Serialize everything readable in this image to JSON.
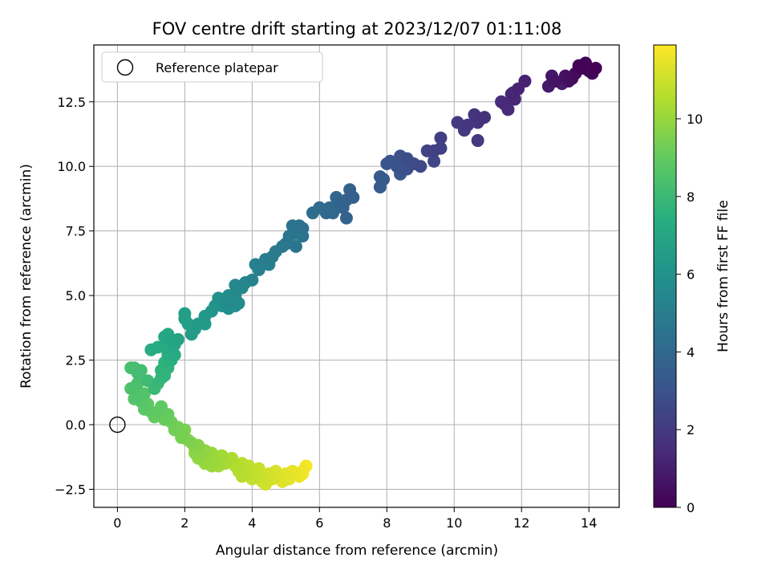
{
  "chart_data": {
    "type": "scatter",
    "title": "FOV centre drift starting at 2023/12/07 01:11:08",
    "xlabel": "Angular distance from reference (arcmin)",
    "ylabel": "Rotation from reference (arcmin)",
    "xlim": [
      -0.7,
      14.9
    ],
    "ylim": [
      -3.2,
      14.7
    ],
    "xticks": [
      0,
      2,
      4,
      6,
      8,
      10,
      12,
      14
    ],
    "yticks": [
      -2.5,
      0.0,
      2.5,
      5.0,
      7.5,
      10.0,
      12.5
    ],
    "ytick_labels": [
      "−2.5",
      "0.0",
      "2.5",
      "5.0",
      "7.5",
      "10.0",
      "12.5"
    ],
    "grid": true,
    "legend": {
      "placement": "top-left",
      "entries": [
        {
          "label": "Reference platepar",
          "marker": "open-circle",
          "x": 0,
          "y": 0
        }
      ]
    },
    "colorbar": {
      "label": "Hours from first FF file",
      "range": [
        0,
        11.9
      ],
      "ticks": [
        0,
        2,
        4,
        6,
        8,
        10
      ],
      "colormap": "viridis"
    },
    "color_value": "hours",
    "points": [
      {
        "x": 14.2,
        "y": 13.8,
        "hours": 0.05
      },
      {
        "x": 13.9,
        "y": 14.0,
        "hours": 0.1
      },
      {
        "x": 14.1,
        "y": 13.6,
        "hours": 0.15
      },
      {
        "x": 13.8,
        "y": 13.8,
        "hours": 0.2
      },
      {
        "x": 13.6,
        "y": 13.6,
        "hours": 0.3
      },
      {
        "x": 13.5,
        "y": 13.4,
        "hours": 0.4
      },
      {
        "x": 13.3,
        "y": 13.5,
        "hours": 0.5
      },
      {
        "x": 13.0,
        "y": 13.3,
        "hours": 0.6
      },
      {
        "x": 12.9,
        "y": 13.5,
        "hours": 0.7
      },
      {
        "x": 12.8,
        "y": 13.1,
        "hours": 0.8
      },
      {
        "x": 13.2,
        "y": 13.2,
        "hours": 0.9
      },
      {
        "x": 13.7,
        "y": 13.9,
        "hours": 0.05
      },
      {
        "x": 14.0,
        "y": 13.7,
        "hours": 0.12
      },
      {
        "x": 13.4,
        "y": 13.3,
        "hours": 0.55
      },
      {
        "x": 12.1,
        "y": 13.3,
        "hours": 1.1
      },
      {
        "x": 11.9,
        "y": 13.0,
        "hours": 1.2
      },
      {
        "x": 11.7,
        "y": 12.8,
        "hours": 1.3
      },
      {
        "x": 11.5,
        "y": 12.4,
        "hours": 1.4
      },
      {
        "x": 11.8,
        "y": 12.6,
        "hours": 1.35
      },
      {
        "x": 11.6,
        "y": 12.2,
        "hours": 1.45
      },
      {
        "x": 11.4,
        "y": 12.5,
        "hours": 1.5
      },
      {
        "x": 11.75,
        "y": 12.85,
        "hours": 1.25
      },
      {
        "x": 10.9,
        "y": 11.9,
        "hours": 1.7
      },
      {
        "x": 10.7,
        "y": 11.7,
        "hours": 1.8
      },
      {
        "x": 10.6,
        "y": 12.0,
        "hours": 1.75
      },
      {
        "x": 10.4,
        "y": 11.6,
        "hours": 1.9
      },
      {
        "x": 10.1,
        "y": 11.7,
        "hours": 2.0
      },
      {
        "x": 10.7,
        "y": 11.0,
        "hours": 1.95
      },
      {
        "x": 10.3,
        "y": 11.4,
        "hours": 2.05
      },
      {
        "x": 10.8,
        "y": 11.85,
        "hours": 1.72
      },
      {
        "x": 9.6,
        "y": 11.1,
        "hours": 2.2
      },
      {
        "x": 9.6,
        "y": 10.7,
        "hours": 2.3
      },
      {
        "x": 9.4,
        "y": 10.6,
        "hours": 2.35
      },
      {
        "x": 9.2,
        "y": 10.6,
        "hours": 2.4
      },
      {
        "x": 9.4,
        "y": 10.2,
        "hours": 2.45
      },
      {
        "x": 9.0,
        "y": 10.0,
        "hours": 2.6
      },
      {
        "x": 8.8,
        "y": 10.1,
        "hours": 2.7
      },
      {
        "x": 8.6,
        "y": 10.3,
        "hours": 2.8
      },
      {
        "x": 8.4,
        "y": 10.4,
        "hours": 2.9
      },
      {
        "x": 8.5,
        "y": 9.9,
        "hours": 3.0
      },
      {
        "x": 8.3,
        "y": 10.0,
        "hours": 3.05
      },
      {
        "x": 8.1,
        "y": 10.2,
        "hours": 3.1
      },
      {
        "x": 8.0,
        "y": 10.1,
        "hours": 3.15
      },
      {
        "x": 8.4,
        "y": 9.7,
        "hours": 3.2
      },
      {
        "x": 8.6,
        "y": 9.9,
        "hours": 2.9
      },
      {
        "x": 7.9,
        "y": 9.5,
        "hours": 3.3
      },
      {
        "x": 7.8,
        "y": 9.6,
        "hours": 3.35
      },
      {
        "x": 7.8,
        "y": 9.2,
        "hours": 3.4
      },
      {
        "x": 7.0,
        "y": 8.8,
        "hours": 3.6
      },
      {
        "x": 6.9,
        "y": 9.1,
        "hours": 3.65
      },
      {
        "x": 6.8,
        "y": 8.7,
        "hours": 3.7
      },
      {
        "x": 6.7,
        "y": 8.4,
        "hours": 3.8
      },
      {
        "x": 6.6,
        "y": 8.6,
        "hours": 3.85
      },
      {
        "x": 6.5,
        "y": 8.8,
        "hours": 3.9
      },
      {
        "x": 6.4,
        "y": 8.2,
        "hours": 4.0
      },
      {
        "x": 6.3,
        "y": 8.4,
        "hours": 4.05
      },
      {
        "x": 6.2,
        "y": 8.2,
        "hours": 4.1
      },
      {
        "x": 6.0,
        "y": 8.4,
        "hours": 4.2
      },
      {
        "x": 6.8,
        "y": 8.0,
        "hours": 3.75
      },
      {
        "x": 5.8,
        "y": 8.2,
        "hours": 4.25
      },
      {
        "x": 5.5,
        "y": 7.6,
        "hours": 4.4
      },
      {
        "x": 5.4,
        "y": 7.7,
        "hours": 4.45
      },
      {
        "x": 5.2,
        "y": 7.7,
        "hours": 4.5
      },
      {
        "x": 5.3,
        "y": 7.4,
        "hours": 4.55
      },
      {
        "x": 5.5,
        "y": 7.3,
        "hours": 4.5
      },
      {
        "x": 5.1,
        "y": 7.3,
        "hours": 4.6
      },
      {
        "x": 5.0,
        "y": 7.0,
        "hours": 4.7
      },
      {
        "x": 5.3,
        "y": 6.9,
        "hours": 4.65
      },
      {
        "x": 4.9,
        "y": 6.9,
        "hours": 4.8
      },
      {
        "x": 4.7,
        "y": 6.7,
        "hours": 4.9
      },
      {
        "x": 4.6,
        "y": 6.5,
        "hours": 5.0
      },
      {
        "x": 4.4,
        "y": 6.4,
        "hours": 5.05
      },
      {
        "x": 4.3,
        "y": 6.2,
        "hours": 5.1
      },
      {
        "x": 4.5,
        "y": 6.2,
        "hours": 5.1
      },
      {
        "x": 4.1,
        "y": 6.2,
        "hours": 5.15
      },
      {
        "x": 4.2,
        "y": 6.0,
        "hours": 5.2
      },
      {
        "x": 4.0,
        "y": 5.6,
        "hours": 5.3
      },
      {
        "x": 3.8,
        "y": 5.5,
        "hours": 5.4
      },
      {
        "x": 3.7,
        "y": 5.3,
        "hours": 5.5
      },
      {
        "x": 3.5,
        "y": 5.4,
        "hours": 5.5
      },
      {
        "x": 3.5,
        "y": 5.0,
        "hours": 5.6
      },
      {
        "x": 3.4,
        "y": 4.8,
        "hours": 5.65
      },
      {
        "x": 3.6,
        "y": 4.7,
        "hours": 5.7
      },
      {
        "x": 3.3,
        "y": 5.0,
        "hours": 5.75
      },
      {
        "x": 3.2,
        "y": 4.7,
        "hours": 5.8
      },
      {
        "x": 3.3,
        "y": 4.5,
        "hours": 5.85
      },
      {
        "x": 3.5,
        "y": 4.6,
        "hours": 5.9
      },
      {
        "x": 3.1,
        "y": 4.6,
        "hours": 6.0
      },
      {
        "x": 2.9,
        "y": 4.6,
        "hours": 6.1
      },
      {
        "x": 2.8,
        "y": 4.4,
        "hours": 6.2
      },
      {
        "x": 3.0,
        "y": 4.9,
        "hours": 5.95
      },
      {
        "x": 2.6,
        "y": 4.2,
        "hours": 6.3
      },
      {
        "x": 2.6,
        "y": 3.9,
        "hours": 6.35
      },
      {
        "x": 2.4,
        "y": 3.9,
        "hours": 6.4
      },
      {
        "x": 2.3,
        "y": 3.7,
        "hours": 6.45
      },
      {
        "x": 2.2,
        "y": 3.5,
        "hours": 6.5
      },
      {
        "x": 2.1,
        "y": 3.9,
        "hours": 6.6
      },
      {
        "x": 2.0,
        "y": 4.1,
        "hours": 6.7
      },
      {
        "x": 2.0,
        "y": 4.3,
        "hours": 6.65
      },
      {
        "x": 1.8,
        "y": 3.3,
        "hours": 6.9
      },
      {
        "x": 1.7,
        "y": 3.1,
        "hours": 7.0
      },
      {
        "x": 1.6,
        "y": 3.3,
        "hours": 7.0
      },
      {
        "x": 1.5,
        "y": 3.5,
        "hours": 7.05
      },
      {
        "x": 1.4,
        "y": 3.4,
        "hours": 7.1
      },
      {
        "x": 1.4,
        "y": 3.0,
        "hours": 7.2
      },
      {
        "x": 1.2,
        "y": 3.0,
        "hours": 7.3
      },
      {
        "x": 1.0,
        "y": 2.9,
        "hours": 7.35
      },
      {
        "x": 1.7,
        "y": 2.7,
        "hours": 7.25
      },
      {
        "x": 1.5,
        "y": 2.7,
        "hours": 7.4
      },
      {
        "x": 1.6,
        "y": 2.5,
        "hours": 7.5
      },
      {
        "x": 1.4,
        "y": 2.4,
        "hours": 7.6
      },
      {
        "x": 1.3,
        "y": 2.1,
        "hours": 7.7
      },
      {
        "x": 1.5,
        "y": 2.2,
        "hours": 7.65
      },
      {
        "x": 1.3,
        "y": 1.8,
        "hours": 7.8
      },
      {
        "x": 1.2,
        "y": 1.6,
        "hours": 7.9
      },
      {
        "x": 1.4,
        "y": 1.9,
        "hours": 7.75
      },
      {
        "x": 1.1,
        "y": 1.4,
        "hours": 8.0
      },
      {
        "x": 0.9,
        "y": 1.7,
        "hours": 8.1
      },
      {
        "x": 0.7,
        "y": 2.1,
        "hours": 8.2
      },
      {
        "x": 0.6,
        "y": 2.0,
        "hours": 8.25
      },
      {
        "x": 0.5,
        "y": 2.2,
        "hours": 8.3
      },
      {
        "x": 0.4,
        "y": 2.2,
        "hours": 8.35
      },
      {
        "x": 0.6,
        "y": 1.6,
        "hours": 8.4
      },
      {
        "x": 0.5,
        "y": 1.4,
        "hours": 8.45
      },
      {
        "x": 0.4,
        "y": 1.4,
        "hours": 8.5
      },
      {
        "x": 0.6,
        "y": 1.1,
        "hours": 8.55
      },
      {
        "x": 0.8,
        "y": 1.2,
        "hours": 8.6
      },
      {
        "x": 0.5,
        "y": 1.0,
        "hours": 8.65
      },
      {
        "x": 0.7,
        "y": 0.9,
        "hours": 8.7
      },
      {
        "x": 0.8,
        "y": 0.6,
        "hours": 8.8
      },
      {
        "x": 0.9,
        "y": 0.8,
        "hours": 8.85
      },
      {
        "x": 1.0,
        "y": 0.5,
        "hours": 8.9
      },
      {
        "x": 1.1,
        "y": 0.3,
        "hours": 9.0
      },
      {
        "x": 1.2,
        "y": 0.5,
        "hours": 8.95
      },
      {
        "x": 1.3,
        "y": 0.7,
        "hours": 8.9
      },
      {
        "x": 1.4,
        "y": 0.2,
        "hours": 9.1
      },
      {
        "x": 1.5,
        "y": 0.4,
        "hours": 9.05
      },
      {
        "x": 1.6,
        "y": 0.1,
        "hours": 9.2
      },
      {
        "x": 1.7,
        "y": -0.2,
        "hours": 9.3
      },
      {
        "x": 1.8,
        "y": -0.1,
        "hours": 9.35
      },
      {
        "x": 1.9,
        "y": -0.4,
        "hours": 9.4
      },
      {
        "x": 2.0,
        "y": -0.2,
        "hours": 9.45
      },
      {
        "x": 2.1,
        "y": -0.6,
        "hours": 9.5
      },
      {
        "x": 1.9,
        "y": -0.5,
        "hours": 9.4
      },
      {
        "x": 2.2,
        "y": -0.7,
        "hours": 9.6
      },
      {
        "x": 2.3,
        "y": -0.9,
        "hours": 9.7
      },
      {
        "x": 2.4,
        "y": -0.8,
        "hours": 9.7
      },
      {
        "x": 2.3,
        "y": -1.1,
        "hours": 9.8
      },
      {
        "x": 2.5,
        "y": -1.2,
        "hours": 9.85
      },
      {
        "x": 2.6,
        "y": -1.0,
        "hours": 9.9
      },
      {
        "x": 2.7,
        "y": -1.3,
        "hours": 10.0
      },
      {
        "x": 2.8,
        "y": -1.1,
        "hours": 10.05
      },
      {
        "x": 2.9,
        "y": -1.4,
        "hours": 10.1
      },
      {
        "x": 3.0,
        "y": -1.6,
        "hours": 10.2
      },
      {
        "x": 3.1,
        "y": -1.2,
        "hours": 10.2
      },
      {
        "x": 3.2,
        "y": -1.5,
        "hours": 10.3
      },
      {
        "x": 2.6,
        "y": -1.5,
        "hours": 10.0
      },
      {
        "x": 2.4,
        "y": -1.3,
        "hours": 9.9
      },
      {
        "x": 2.8,
        "y": -1.6,
        "hours": 10.1
      },
      {
        "x": 3.4,
        "y": -1.3,
        "hours": 10.4
      },
      {
        "x": 3.5,
        "y": -1.6,
        "hours": 10.5
      },
      {
        "x": 3.6,
        "y": -1.8,
        "hours": 10.55
      },
      {
        "x": 3.7,
        "y": -2.0,
        "hours": 10.6
      },
      {
        "x": 3.8,
        "y": -1.7,
        "hours": 10.65
      },
      {
        "x": 3.9,
        "y": -1.9,
        "hours": 10.7
      },
      {
        "x": 4.0,
        "y": -2.1,
        "hours": 10.8
      },
      {
        "x": 4.1,
        "y": -1.8,
        "hours": 10.85
      },
      {
        "x": 4.2,
        "y": -2.0,
        "hours": 10.9
      },
      {
        "x": 4.3,
        "y": -2.2,
        "hours": 11.0
      },
      {
        "x": 4.4,
        "y": -2.3,
        "hours": 11.05
      },
      {
        "x": 4.5,
        "y": -1.9,
        "hours": 11.1
      },
      {
        "x": 4.6,
        "y": -2.1,
        "hours": 11.15
      },
      {
        "x": 4.7,
        "y": -1.8,
        "hours": 11.2
      },
      {
        "x": 4.8,
        "y": -2.0,
        "hours": 11.3
      },
      {
        "x": 5.0,
        "y": -1.9,
        "hours": 11.4
      },
      {
        "x": 5.1,
        "y": -2.1,
        "hours": 11.45
      },
      {
        "x": 5.2,
        "y": -1.8,
        "hours": 11.5
      },
      {
        "x": 5.3,
        "y": -1.9,
        "hours": 11.55
      },
      {
        "x": 5.5,
        "y": -1.8,
        "hours": 11.65
      },
      {
        "x": 5.6,
        "y": -1.6,
        "hours": 11.75
      },
      {
        "x": 5.5,
        "y": -1.9,
        "hours": 11.8
      },
      {
        "x": 4.9,
        "y": -2.2,
        "hours": 11.35
      },
      {
        "x": 3.9,
        "y": -1.6,
        "hours": 10.75
      },
      {
        "x": 3.7,
        "y": -1.5,
        "hours": 10.6
      },
      {
        "x": 4.2,
        "y": -1.7,
        "hours": 10.9
      },
      {
        "x": 5.4,
        "y": -2.0,
        "hours": 11.6
      }
    ]
  }
}
